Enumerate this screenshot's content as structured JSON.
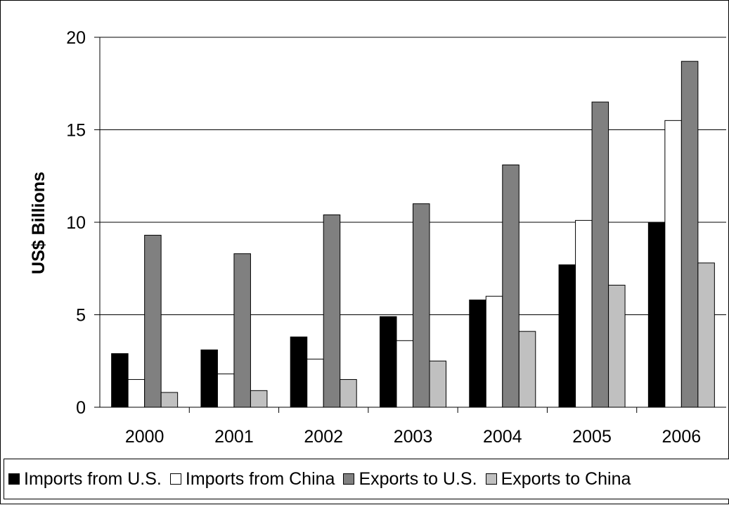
{
  "chart_data": {
    "type": "bar",
    "title": "",
    "xlabel": "",
    "ylabel": "US$ Billions",
    "ylim": [
      0,
      20
    ],
    "yticks": [
      0,
      5,
      10,
      15,
      20
    ],
    "grid": true,
    "legend_position": "bottom",
    "categories": [
      "2000",
      "2001",
      "2002",
      "2003",
      "2004",
      "2005",
      "2006"
    ],
    "series": [
      {
        "name": "Imports from U.S.",
        "color": "#000000",
        "values": [
          2.9,
          3.1,
          3.8,
          4.9,
          5.8,
          7.7,
          10.0
        ]
      },
      {
        "name": "Imports from China",
        "color": "#ffffff",
        "values": [
          1.5,
          1.8,
          2.6,
          3.6,
          6.0,
          10.1,
          15.5
        ]
      },
      {
        "name": "Exports to U.S.",
        "color": "#808080",
        "values": [
          9.3,
          8.3,
          10.4,
          11.0,
          13.1,
          16.5,
          18.7
        ]
      },
      {
        "name": "Exports to China",
        "color": "#c0c0c0",
        "values": [
          0.8,
          0.9,
          1.5,
          2.5,
          4.1,
          6.6,
          7.8
        ]
      }
    ]
  }
}
